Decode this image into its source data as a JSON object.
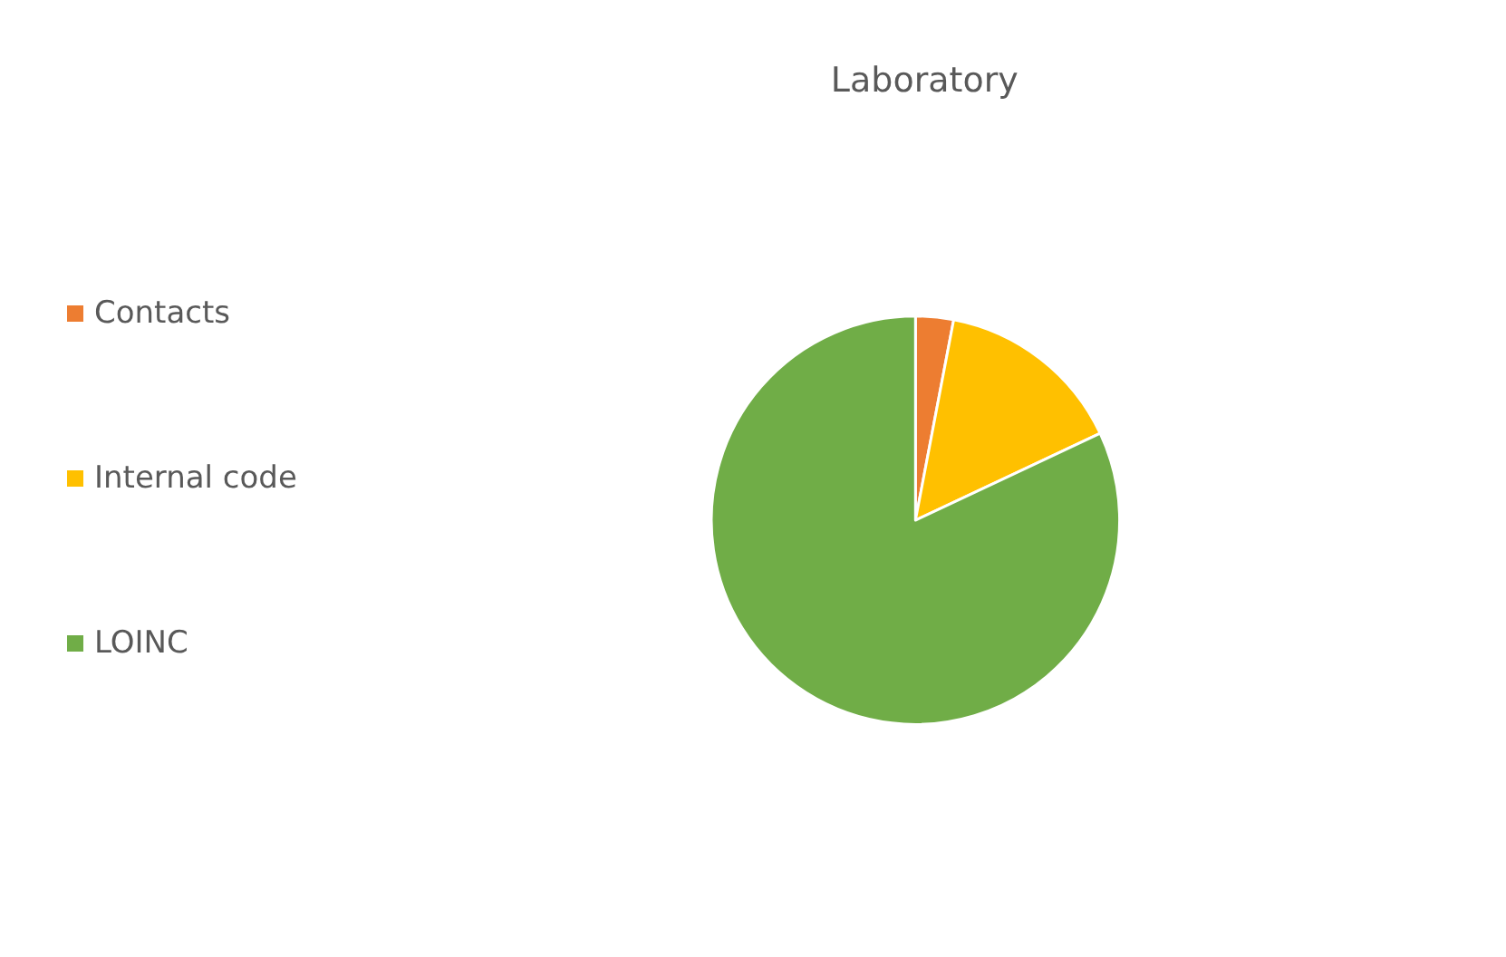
{
  "chart_data": {
    "type": "pie",
    "title": "Laboratory",
    "categories": [
      "Contacts",
      "Internal code",
      "LOINC"
    ],
    "values": [
      3,
      15,
      82
    ],
    "colors": [
      "#ed7d31",
      "#ffc000",
      "#70ad47"
    ],
    "legend": "left"
  }
}
